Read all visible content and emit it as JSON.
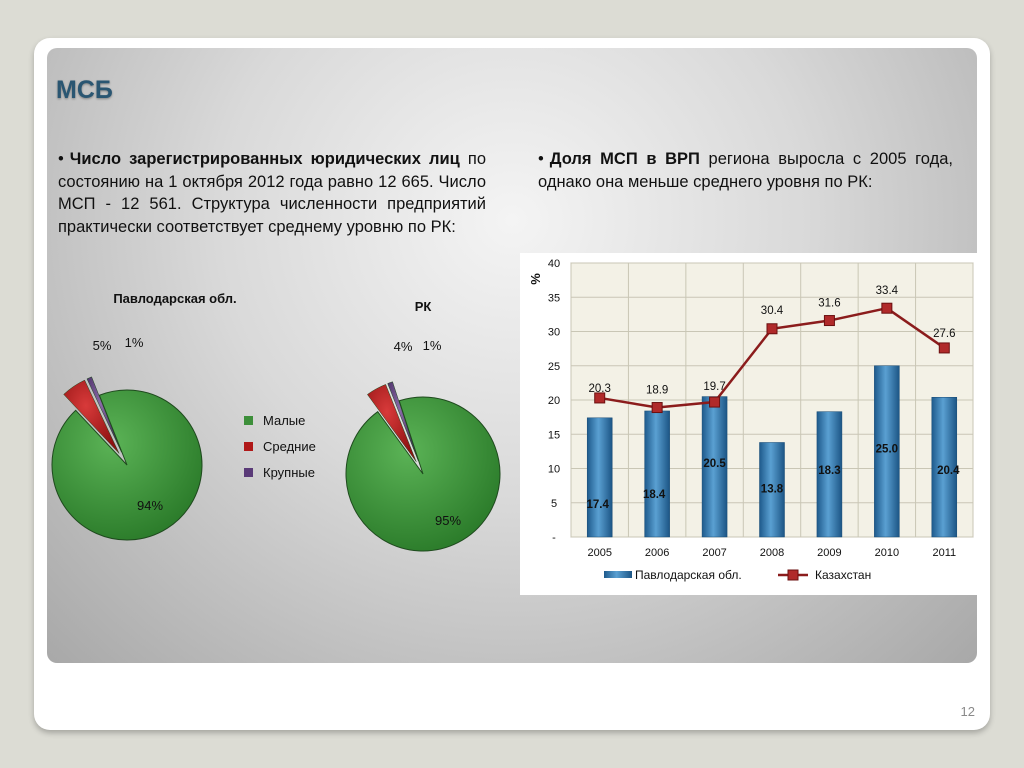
{
  "slide": {
    "title": "МСБ",
    "page_number": "12",
    "bullets": [
      {
        "marker": "•",
        "bold": "Число зарегистрированных юридических лиц",
        "rest": " по состоянию на 1 октября 2012 года равно 12 665. Число МСП - 12 561. Структура численности предприятий практически соответствует среднему уровню по РК:"
      },
      {
        "marker": "•",
        "bold": "Доля МСП в ВРП",
        "rest": " региона выросла с 2005 года, однако она меньше среднего уровня по РК:"
      }
    ]
  },
  "colors": {
    "title": "#2a5672",
    "pie_small": "#3d8f3a",
    "pie_medium": "#b01818",
    "pie_large": "#5a3a78",
    "bar": "#2d6fa3",
    "line": "#8b1c1c",
    "plot_bg": "#f3f1e6"
  },
  "chart_data": [
    {
      "type": "pie",
      "title": "Павлодарская обл.",
      "labels": [
        "Малые",
        "Средние",
        "Крупные"
      ],
      "values": [
        94,
        5,
        1
      ],
      "value_labels": [
        "94%",
        "5%",
        "1%"
      ]
    },
    {
      "type": "pie",
      "title": "РК",
      "labels": [
        "Малые",
        "Средние",
        "Крупные"
      ],
      "values": [
        95,
        4,
        1
      ],
      "value_labels": [
        "95%",
        "4%",
        "1%"
      ],
      "legend": [
        "Малые",
        "Средние",
        "Крупные"
      ]
    },
    {
      "type": "bar",
      "ylabel": "%",
      "ylim": [
        0,
        40
      ],
      "y_ticks": [
        "-",
        "5",
        "10",
        "15",
        "20",
        "25",
        "30",
        "35",
        "40"
      ],
      "categories": [
        "2005",
        "2006",
        "2007",
        "2008",
        "2009",
        "2010",
        "2011"
      ],
      "series": [
        {
          "name": "Павлодарская обл.",
          "kind": "bar",
          "values": [
            17.4,
            18.4,
            20.5,
            13.8,
            18.3,
            25.0,
            20.4
          ],
          "labels": [
            "17.4",
            "18.4",
            "20.5",
            "13.8",
            "18.3",
            "25.0",
            "20.4"
          ]
        },
        {
          "name": "Казахстан",
          "kind": "line",
          "values": [
            20.3,
            18.9,
            19.7,
            30.4,
            31.6,
            33.4,
            27.6
          ],
          "labels": [
            "20.3",
            "18.9",
            "19.7",
            "30.4",
            "31.6",
            "33.4",
            "27.6"
          ]
        }
      ],
      "grid": true
    }
  ]
}
